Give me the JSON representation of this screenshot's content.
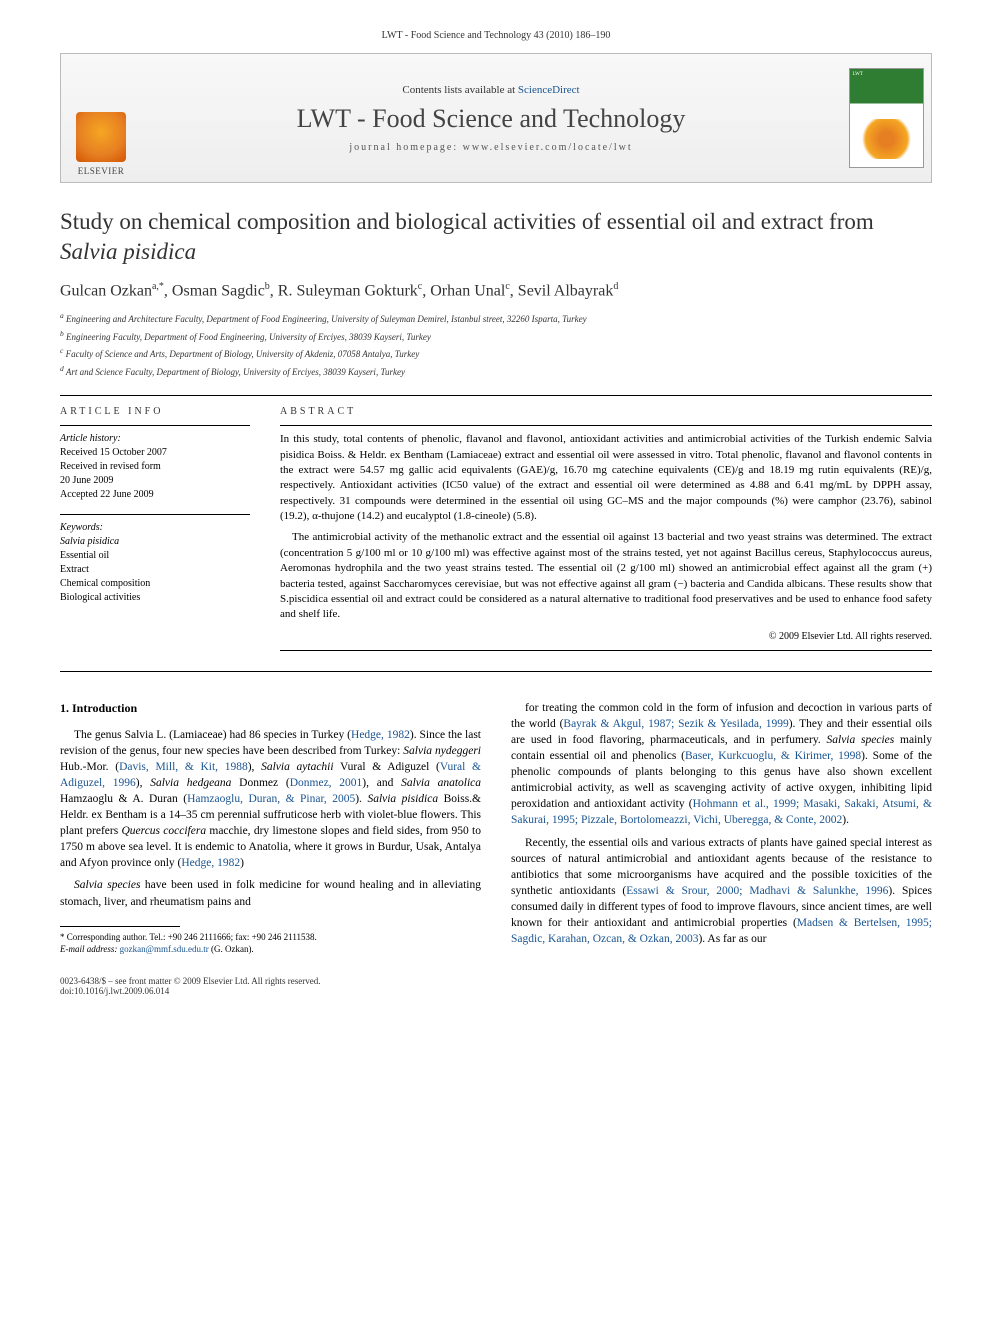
{
  "header_citation": "LWT - Food Science and Technology 43 (2010) 186–190",
  "banner": {
    "contents_prefix": "Contents lists available at ",
    "contents_link": "ScienceDirect",
    "journal": "LWT - Food Science and Technology",
    "homepage_prefix": "journal homepage: ",
    "homepage": "www.elsevier.com/locate/lwt",
    "publisher": "ELSEVIER",
    "cover_label": "LWT"
  },
  "title_pre": "Study on chemical composition and biological activities of essential oil and extract from ",
  "title_species": "Salvia pisidica",
  "authors_html": "Gulcan Ozkan<sup>a,*</sup>, Osman Sagdic<sup>b</sup>, R. Suleyman Gokturk<sup>c</sup>, Orhan Unal<sup>c</sup>, Sevil Albayrak<sup>d</sup>",
  "affiliations": [
    "a Engineering and Architecture Faculty, Department of Food Engineering, University of Suleyman Demirel, Istanbul street, 32260 Isparta, Turkey",
    "b Engineering Faculty, Department of Food Engineering, University of Erciyes, 38039 Kayseri, Turkey",
    "c Faculty of Science and Arts, Department of Biology, University of Akdeniz, 07058 Antalya, Turkey",
    "d Art and Science Faculty, Department of Biology, University of Erciyes, 38039 Kayseri, Turkey"
  ],
  "info": {
    "heading": "ARTICLE INFO",
    "history_label": "Article history:",
    "history": [
      "Received 15 October 2007",
      "Received in revised form",
      "20 June 2009",
      "Accepted 22 June 2009"
    ],
    "keywords_label": "Keywords:",
    "keywords": [
      "Salvia pisidica",
      "Essential oil",
      "Extract",
      "Chemical composition",
      "Biological activities"
    ]
  },
  "abstract": {
    "heading": "ABSTRACT",
    "paragraphs": [
      "In this study, total contents of phenolic, flavanol and flavonol, antioxidant activities and antimicrobial activities of the Turkish endemic Salvia pisidica Boiss. & Heldr. ex Bentham (Lamiaceae) extract and essential oil were assessed in vitro. Total phenolic, flavanol and flavonol contents in the extract were 54.57 mg gallic acid equivalents (GAE)/g, 16.70 mg catechine equivalents (CE)/g and 18.19 mg rutin equivalents (RE)/g, respectively. Antioxidant activities (IC50 value) of the extract and essential oil were determined as 4.88 and 6.41 mg/mL by DPPH assay, respectively. 31 compounds were determined in the essential oil using GC–MS and the major compounds (%) were camphor (23.76), sabinol (19.2), α-thujone (14.2) and eucalyptol (1.8-cineole) (5.8).",
      "The antimicrobial activity of the methanolic extract and the essential oil against 13 bacterial and two yeast strains was determined. The extract (concentration 5 g/100 ml or 10 g/100 ml) was effective against most of the strains tested, yet not against Bacillus cereus, Staphylococcus aureus, Aeromonas hydrophila and the two yeast strains tested. The essential oil (2 g/100 ml) showed an antimicrobial effect against all the gram (+) bacteria tested, against Saccharomyces cerevisiae, but was not effective against all gram (−) bacteria and Candida albicans. These results show that S.piscidica essential oil and extract could be considered as a natural alternative to traditional food preservatives and be used to enhance food safety and shelf life."
    ],
    "copyright": "© 2009 Elsevier Ltd. All rights reserved."
  },
  "body": {
    "section": "1. Introduction",
    "left_paragraphs": [
      "The genus Salvia L. (Lamiaceae) had 86 species in Turkey (Hedge, 1982). Since the last revision of the genus, four new species have been described from Turkey: Salvia nydeggeri Hub.-Mor. (Davis, Mill, & Kit, 1988), Salvia aytachii Vural & Adiguzel (Vural & Adiguzel, 1996), Salvia hedgeana Donmez (Donmez, 2001), and Salvia anatolica Hamzaoglu & A. Duran (Hamzaoglu, Duran, & Pinar, 2005). Salvia pisidica Boiss.& Heldr. ex Bentham is a 14–35 cm perennial suffruticose herb with violet-blue flowers. This plant prefers Quercus coccifera macchie, dry limestone slopes and field sides, from 950 to 1750 m above sea level. It is endemic to Anatolia, where it grows in Burdur, Usak, Antalya and Afyon province only (Hedge, 1982)",
      "Salvia species have been used in folk medicine for wound healing and in alleviating stomach, liver, and rheumatism pains and"
    ],
    "right_paragraphs": [
      "for treating the common cold in the form of infusion and decoction in various parts of the world (Bayrak & Akgul, 1987; Sezik & Yesilada, 1999). They and their essential oils are used in food flavoring, pharmaceuticals, and in perfumery. Salvia species mainly contain essential oil and phenolics (Baser, Kurkcuoglu, & Kirimer, 1998). Some of the phenolic compounds of plants belonging to this genus have also shown excellent antimicrobial activity, as well as scavenging activity of active oxygen, inhibiting lipid peroxidation and antioxidant activity (Hohmann et al., 1999; Masaki, Sakaki, Atsumi, & Sakurai, 1995; Pizzale, Bortolomeazzi, Vichi, Uberegga, & Conte, 2002).",
      "Recently, the essential oils and various extracts of plants have gained special interest as sources of natural antimicrobial and antioxidant agents because of the resistance to antibiotics that some microorganisms have acquired and the possible toxicities of the synthetic antioxidants (Essawi & Srour, 2000; Madhavi & Salunkhe, 1996). Spices consumed daily in different types of food to improve flavours, since ancient times, are well known for their antioxidant and antimicrobial properties (Madsen & Bertelsen, 1995; Sagdic, Karahan, Ozcan, & Ozkan, 2003). As far as our"
    ]
  },
  "footnotes": {
    "corr": "* Corresponding author. Tel.: +90 246 2111666; fax: +90 246 2111538.",
    "email_label": "E-mail address: ",
    "email": "gozkan@mmf.sdu.edu.tr",
    "email_who": " (G. Ozkan)."
  },
  "footer": {
    "left1": "0023-6438/$ – see front matter © 2009 Elsevier Ltd. All rights reserved.",
    "left2": "doi:10.1016/j.lwt.2009.06.014"
  },
  "colors": {
    "link": "#1a5490",
    "text": "#000000",
    "grey": "#333333"
  }
}
